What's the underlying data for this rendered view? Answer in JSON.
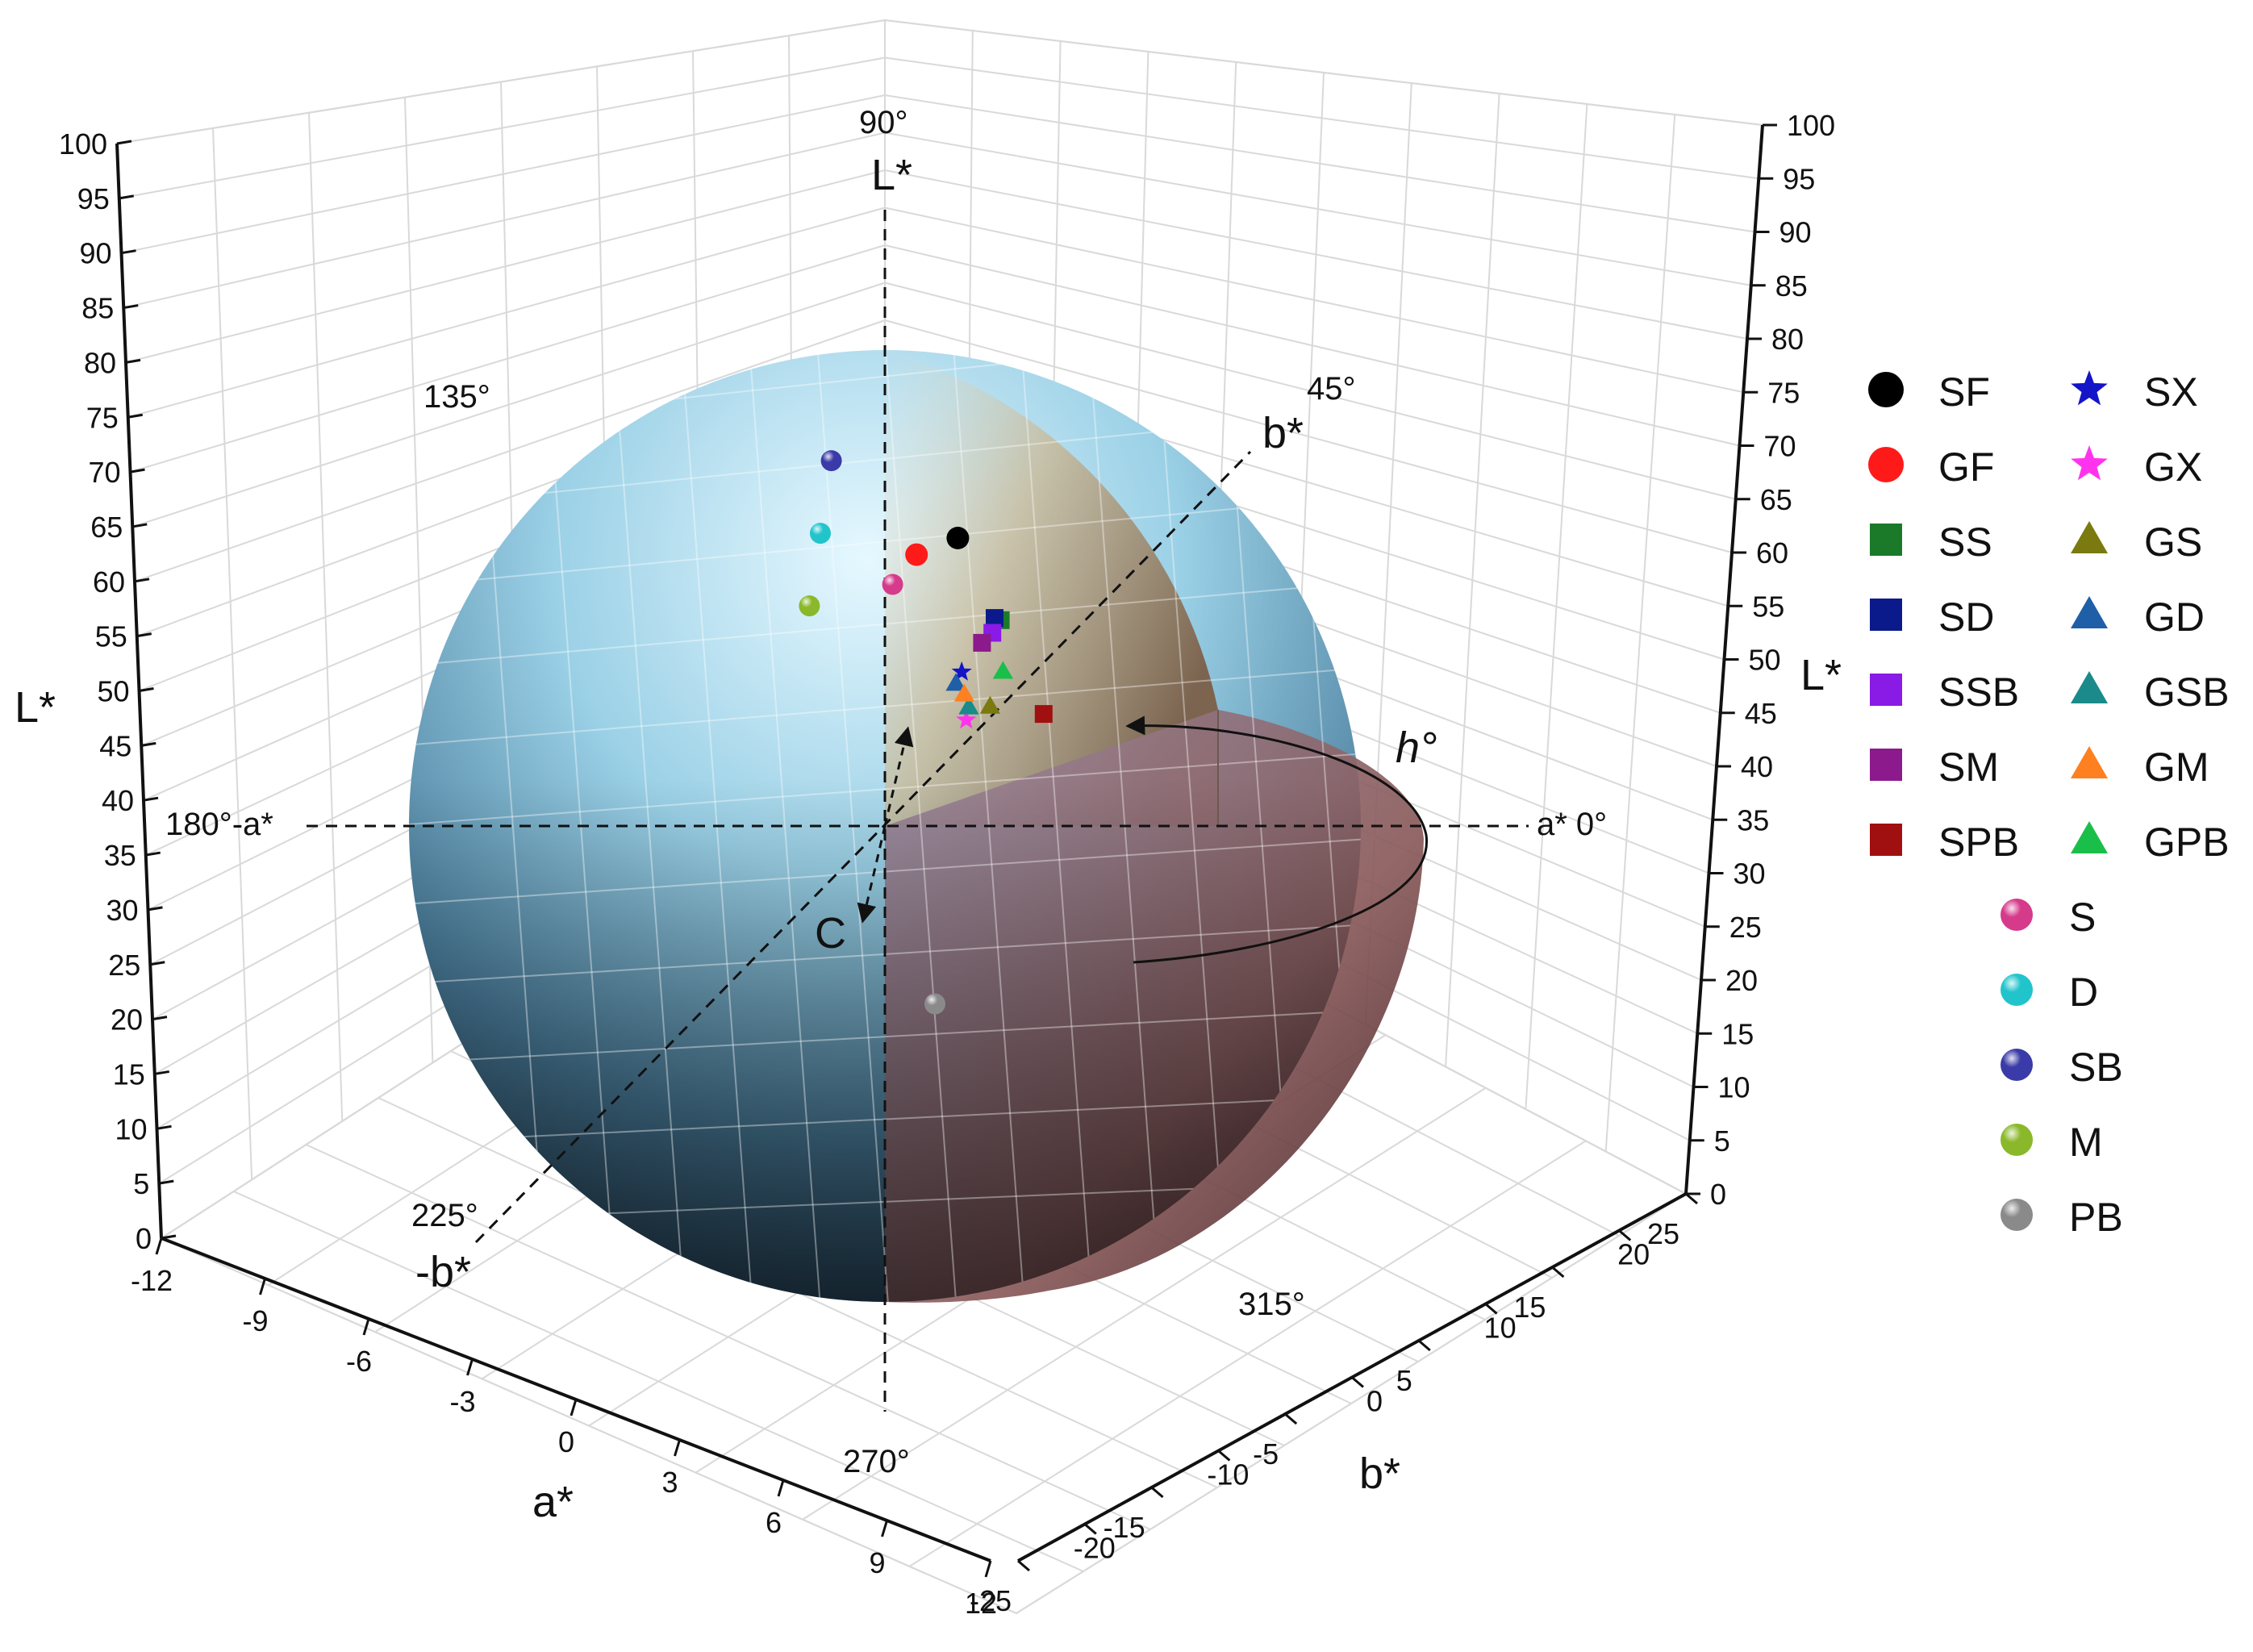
{
  "chart_data": {
    "type": "scatter",
    "subtype": "3d-scatter in CIELAB colour sphere",
    "axes": {
      "a": {
        "title": "a*",
        "range": [
          -12,
          12
        ],
        "ticks": [
          "-12",
          "-9",
          "-6",
          "-3",
          "0",
          "3",
          "6",
          "9",
          "12"
        ]
      },
      "b": {
        "title": "b*",
        "range": [
          -25,
          25
        ],
        "ticks": [
          "-25",
          "-20",
          "-15",
          "-10",
          "-5",
          "0",
          "5",
          "10",
          "15",
          "20",
          "25"
        ]
      },
      "L": {
        "title": "L*",
        "range": [
          0,
          100
        ],
        "ticks": [
          "0",
          "5",
          "10",
          "15",
          "20",
          "25",
          "30",
          "35",
          "40",
          "45",
          "50",
          "55",
          "60",
          "65",
          "70",
          "75",
          "80",
          "85",
          "90",
          "95",
          "100"
        ]
      }
    },
    "grid": true,
    "sphere_labels": {
      "top_angle": "90°",
      "l_axis": "L*",
      "upper_left_angle": "135°",
      "upper_right_angle": "45°",
      "b_pos": "b*",
      "left_axis": "180°-a*",
      "right_axis": "a* 0°",
      "hue": "h°",
      "chroma": "C",
      "lower_left_angle": "225°",
      "b_neg": "-b*",
      "lower_right_angle": "315°",
      "bottom_angle": "270°"
    },
    "legend_position": "right",
    "series": [
      {
        "name": "SF",
        "marker": "circle",
        "color": "#000000",
        "a": 1.8,
        "b": 1.6,
        "L": 61
      },
      {
        "name": "GF",
        "marker": "circle",
        "color": "#ff1a1a",
        "a": 0.2,
        "b": 2.0,
        "L": 59
      },
      {
        "name": "SS",
        "marker": "square",
        "color": "#1a7a2a",
        "a": 3.1,
        "b": 2.0,
        "L": 54
      },
      {
        "name": "SD",
        "marker": "square",
        "color": "#0a1a8a",
        "a": 2.8,
        "b": 2.2,
        "L": 54
      },
      {
        "name": "SSB",
        "marker": "square",
        "color": "#8a1ae6",
        "a": 2.9,
        "b": 1.8,
        "L": 53
      },
      {
        "name": "SM",
        "marker": "square",
        "color": "#8c1a8c",
        "a": 2.5,
        "b": 1.9,
        "L": 52
      },
      {
        "name": "SPB",
        "marker": "square",
        "color": "#a01010",
        "a": 4.4,
        "b": 2.4,
        "L": 46
      },
      {
        "name": "SX",
        "marker": "star",
        "color": "#1414c8",
        "a": 2.2,
        "b": 1.0,
        "L": 50
      },
      {
        "name": "GX",
        "marker": "star",
        "color": "#ff33ee",
        "a": 2.4,
        "b": 0.9,
        "L": 46
      },
      {
        "name": "GS",
        "marker": "triangle",
        "color": "#7a7a10",
        "a": 3.0,
        "b": 1.4,
        "L": 47
      },
      {
        "name": "GD",
        "marker": "triangle",
        "color": "#1f5fa8",
        "a": 2.0,
        "b": 1.0,
        "L": 49
      },
      {
        "name": "GSB",
        "marker": "triangle",
        "color": "#1a8a8a",
        "a": 2.4,
        "b": 1.1,
        "L": 47
      },
      {
        "name": "GM",
        "marker": "triangle",
        "color": "#ff8020",
        "a": 2.2,
        "b": 1.2,
        "L": 48
      },
      {
        "name": "GPB",
        "marker": "triangle",
        "color": "#1abf4a",
        "a": 3.4,
        "b": 1.5,
        "L": 50
      },
      {
        "name": "S",
        "marker": "sphere",
        "color": "#d63a8a",
        "a": -0.8,
        "b": 2.4,
        "L": 56
      },
      {
        "name": "D",
        "marker": "sphere",
        "color": "#22c4cc",
        "a": -3.2,
        "b": 2.2,
        "L": 60
      },
      {
        "name": "SB",
        "marker": "sphere",
        "color": "#3a3aa8",
        "a": -3.0,
        "b": 2.6,
        "L": 66
      },
      {
        "name": "M",
        "marker": "sphere",
        "color": "#8ab82a",
        "a": -3.4,
        "b": 1.8,
        "L": 54
      },
      {
        "name": "PB",
        "marker": "sphere",
        "color": "#8a8a8a",
        "a": 3.5,
        "b": -4.0,
        "L": 25
      }
    ]
  }
}
